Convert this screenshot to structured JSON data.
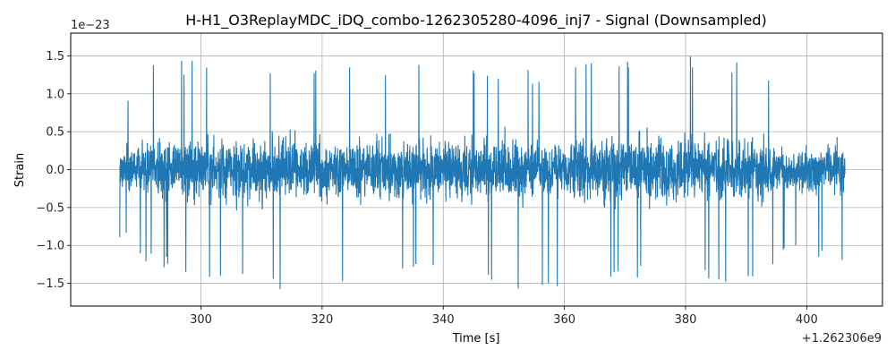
{
  "chart_data": {
    "type": "line",
    "title": "H-H1_O3ReplayMDC_iDQ_combo-1262305280-4096_inj7 - Signal (Downsampled)",
    "xlabel": "Time [s]",
    "ylabel": "Strain",
    "x_offset_label": "+1.262306e9",
    "y_scale_label": "1e−23",
    "xlim": [
      278.5,
      412.5
    ],
    "ylim": [
      -1.8,
      1.8
    ],
    "x_ticks": [
      300,
      320,
      340,
      360,
      380,
      400
    ],
    "x_tick_labels": [
      "300",
      "320",
      "340",
      "360",
      "380",
      "400"
    ],
    "y_ticks": [
      -1.5,
      -1.0,
      -0.5,
      0.0,
      0.5,
      1.0,
      1.5
    ],
    "y_tick_labels": [
      "−1.5",
      "−1.0",
      "−0.5",
      "0.0",
      "0.5",
      "1.0",
      "1.5"
    ],
    "grid": true,
    "series": [
      {
        "color": "#1f77b4",
        "x_start": 286.6,
        "x_end": 406.3,
        "amplitude_envelope": [
          {
            "x": 287,
            "upper": 0.9,
            "lower": -0.9
          },
          {
            "x": 290,
            "upper": 1.35,
            "lower": -1.25
          },
          {
            "x": 300,
            "upper": 1.5,
            "lower": -1.4
          },
          {
            "x": 310,
            "upper": 1.45,
            "lower": -1.55
          },
          {
            "x": 317,
            "upper": 1.4,
            "lower": -1.62
          },
          {
            "x": 330,
            "upper": 1.42,
            "lower": -1.35
          },
          {
            "x": 352,
            "upper": 1.3,
            "lower": -1.58
          },
          {
            "x": 370,
            "upper": 1.45,
            "lower": -1.55
          },
          {
            "x": 377,
            "upper": 1.65,
            "lower": -1.35
          },
          {
            "x": 390,
            "upper": 1.4,
            "lower": -1.52
          },
          {
            "x": 398,
            "upper": 1.0,
            "lower": -1.05
          },
          {
            "x": 406,
            "upper": 0.95,
            "lower": -1.25
          }
        ]
      }
    ]
  }
}
